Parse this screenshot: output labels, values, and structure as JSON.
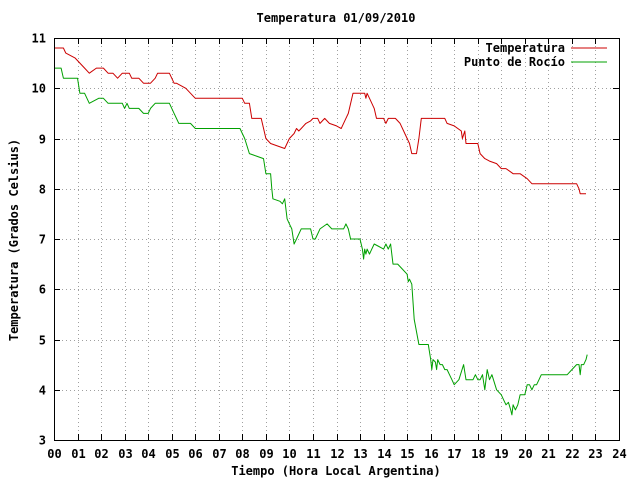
{
  "chart_data": {
    "type": "line",
    "title": "Temperatura 01/09/2010",
    "xlabel": "Tiempo (Hora Local Argentina)",
    "ylabel": "Temperatura (Grados Celsius)",
    "xlim": [
      0,
      24
    ],
    "ylim": [
      3,
      11
    ],
    "x_ticks": [
      "00",
      "01",
      "02",
      "03",
      "04",
      "05",
      "06",
      "07",
      "08",
      "09",
      "10",
      "11",
      "12",
      "13",
      "14",
      "15",
      "16",
      "17",
      "18",
      "19",
      "20",
      "21",
      "22",
      "23",
      "24"
    ],
    "y_ticks": [
      "3",
      "4",
      "5",
      "6",
      "7",
      "8",
      "9",
      "10",
      "11"
    ],
    "grid": true,
    "legend_position": "top-right",
    "series": [
      {
        "name": "Temperatura",
        "color": "#cc0000",
        "points": [
          [
            0.0,
            10.8
          ],
          [
            0.4,
            10.8
          ],
          [
            0.5,
            10.7
          ],
          [
            0.9,
            10.6
          ],
          [
            1.1,
            10.5
          ],
          [
            1.3,
            10.4
          ],
          [
            1.5,
            10.3
          ],
          [
            1.8,
            10.4
          ],
          [
            2.1,
            10.4
          ],
          [
            2.3,
            10.3
          ],
          [
            2.5,
            10.3
          ],
          [
            2.7,
            10.2
          ],
          [
            2.9,
            10.3
          ],
          [
            3.2,
            10.3
          ],
          [
            3.3,
            10.2
          ],
          [
            3.6,
            10.2
          ],
          [
            3.8,
            10.1
          ],
          [
            4.1,
            10.1
          ],
          [
            4.3,
            10.2
          ],
          [
            4.4,
            10.3
          ],
          [
            4.9,
            10.3
          ],
          [
            5.1,
            10.1
          ],
          [
            5.2,
            10.1
          ],
          [
            5.6,
            10.0
          ],
          [
            6.0,
            9.8
          ],
          [
            6.5,
            9.8
          ],
          [
            7.0,
            9.8
          ],
          [
            7.5,
            9.8
          ],
          [
            8.0,
            9.8
          ],
          [
            8.1,
            9.7
          ],
          [
            8.3,
            9.7
          ],
          [
            8.4,
            9.4
          ],
          [
            8.8,
            9.4
          ],
          [
            9.0,
            9.0
          ],
          [
            9.2,
            8.9
          ],
          [
            9.5,
            8.85
          ],
          [
            9.8,
            8.8
          ],
          [
            10.0,
            9.0
          ],
          [
            10.2,
            9.1
          ],
          [
            10.3,
            9.2
          ],
          [
            10.4,
            9.15
          ],
          [
            10.5,
            9.2
          ],
          [
            10.7,
            9.3
          ],
          [
            10.9,
            9.35
          ],
          [
            11.0,
            9.4
          ],
          [
            11.2,
            9.4
          ],
          [
            11.3,
            9.3
          ],
          [
            11.5,
            9.4
          ],
          [
            11.7,
            9.3
          ],
          [
            12.0,
            9.25
          ],
          [
            12.2,
            9.2
          ],
          [
            12.4,
            9.4
          ],
          [
            12.5,
            9.5
          ],
          [
            12.7,
            9.9
          ],
          [
            13.0,
            9.9
          ],
          [
            13.2,
            9.9
          ],
          [
            13.25,
            9.8
          ],
          [
            13.3,
            9.9
          ],
          [
            13.4,
            9.8
          ],
          [
            13.6,
            9.6
          ],
          [
            13.7,
            9.4
          ],
          [
            14.0,
            9.4
          ],
          [
            14.1,
            9.3
          ],
          [
            14.2,
            9.4
          ],
          [
            14.5,
            9.4
          ],
          [
            14.7,
            9.3
          ],
          [
            14.9,
            9.1
          ],
          [
            15.1,
            8.9
          ],
          [
            15.2,
            8.7
          ],
          [
            15.4,
            8.7
          ],
          [
            15.5,
            9.0
          ],
          [
            15.6,
            9.4
          ],
          [
            16.0,
            9.4
          ],
          [
            16.4,
            9.4
          ],
          [
            16.6,
            9.4
          ],
          [
            16.7,
            9.3
          ],
          [
            17.0,
            9.25
          ],
          [
            17.3,
            9.15
          ],
          [
            17.35,
            9.0
          ],
          [
            17.45,
            9.15
          ],
          [
            17.5,
            8.9
          ],
          [
            17.7,
            8.9
          ],
          [
            18.0,
            8.9
          ],
          [
            18.1,
            8.7
          ],
          [
            18.3,
            8.6
          ],
          [
            18.5,
            8.55
          ],
          [
            18.8,
            8.5
          ],
          [
            19.0,
            8.4
          ],
          [
            19.2,
            8.4
          ],
          [
            19.5,
            8.3
          ],
          [
            19.8,
            8.3
          ],
          [
            20.1,
            8.2
          ],
          [
            20.3,
            8.1
          ],
          [
            20.8,
            8.1
          ],
          [
            21.5,
            8.1
          ],
          [
            22.0,
            8.1
          ],
          [
            22.2,
            8.1
          ],
          [
            22.3,
            8.0
          ],
          [
            22.35,
            7.9
          ],
          [
            22.5,
            7.9
          ],
          [
            22.6,
            7.9
          ]
        ]
      },
      {
        "name": "Punto de Rocío",
        "color": "#00a000",
        "points": [
          [
            0.0,
            10.4
          ],
          [
            0.3,
            10.4
          ],
          [
            0.4,
            10.2
          ],
          [
            1.0,
            10.2
          ],
          [
            1.1,
            9.9
          ],
          [
            1.3,
            9.9
          ],
          [
            1.5,
            9.7
          ],
          [
            1.7,
            9.75
          ],
          [
            1.9,
            9.8
          ],
          [
            2.1,
            9.8
          ],
          [
            2.3,
            9.7
          ],
          [
            2.5,
            9.7
          ],
          [
            2.9,
            9.7
          ],
          [
            3.0,
            9.6
          ],
          [
            3.1,
            9.7
          ],
          [
            3.2,
            9.6
          ],
          [
            3.6,
            9.6
          ],
          [
            3.8,
            9.5
          ],
          [
            4.0,
            9.5
          ],
          [
            4.1,
            9.6
          ],
          [
            4.3,
            9.7
          ],
          [
            4.9,
            9.7
          ],
          [
            5.1,
            9.5
          ],
          [
            5.3,
            9.3
          ],
          [
            5.8,
            9.3
          ],
          [
            6.0,
            9.2
          ],
          [
            6.5,
            9.2
          ],
          [
            7.0,
            9.2
          ],
          [
            7.5,
            9.2
          ],
          [
            7.9,
            9.2
          ],
          [
            8.0,
            9.1
          ],
          [
            8.1,
            9.0
          ],
          [
            8.3,
            8.7
          ],
          [
            8.6,
            8.65
          ],
          [
            8.9,
            8.6
          ],
          [
            9.0,
            8.3
          ],
          [
            9.2,
            8.3
          ],
          [
            9.25,
            8.0
          ],
          [
            9.3,
            7.8
          ],
          [
            9.6,
            7.75
          ],
          [
            9.7,
            7.7
          ],
          [
            9.8,
            7.8
          ],
          [
            9.9,
            7.4
          ],
          [
            10.0,
            7.3
          ],
          [
            10.1,
            7.2
          ],
          [
            10.2,
            6.9
          ],
          [
            10.3,
            7.0
          ],
          [
            10.5,
            7.2
          ],
          [
            10.9,
            7.2
          ],
          [
            11.0,
            7.0
          ],
          [
            11.1,
            7.0
          ],
          [
            11.3,
            7.2
          ],
          [
            11.6,
            7.3
          ],
          [
            11.8,
            7.2
          ],
          [
            12.3,
            7.2
          ],
          [
            12.4,
            7.3
          ],
          [
            12.5,
            7.2
          ],
          [
            12.6,
            7.0
          ],
          [
            12.8,
            7.0
          ],
          [
            13.0,
            7.0
          ],
          [
            13.1,
            6.8
          ],
          [
            13.15,
            6.6
          ],
          [
            13.2,
            6.8
          ],
          [
            13.25,
            6.7
          ],
          [
            13.3,
            6.8
          ],
          [
            13.4,
            6.7
          ],
          [
            13.5,
            6.8
          ],
          [
            13.6,
            6.9
          ],
          [
            13.8,
            6.85
          ],
          [
            14.0,
            6.8
          ],
          [
            14.1,
            6.9
          ],
          [
            14.2,
            6.8
          ],
          [
            14.3,
            6.9
          ],
          [
            14.4,
            6.5
          ],
          [
            14.6,
            6.5
          ],
          [
            14.8,
            6.4
          ],
          [
            15.0,
            6.3
          ],
          [
            15.05,
            6.15
          ],
          [
            15.1,
            6.2
          ],
          [
            15.2,
            6.1
          ],
          [
            15.3,
            5.4
          ],
          [
            15.5,
            4.9
          ],
          [
            15.9,
            4.9
          ],
          [
            16.0,
            4.6
          ],
          [
            16.05,
            4.4
          ],
          [
            16.1,
            4.6
          ],
          [
            16.2,
            4.55
          ],
          [
            16.25,
            4.4
          ],
          [
            16.3,
            4.6
          ],
          [
            16.4,
            4.5
          ],
          [
            16.5,
            4.5
          ],
          [
            16.6,
            4.4
          ],
          [
            16.7,
            4.4
          ],
          [
            16.8,
            4.3
          ],
          [
            16.9,
            4.2
          ],
          [
            17.0,
            4.1
          ],
          [
            17.2,
            4.2
          ],
          [
            17.4,
            4.5
          ],
          [
            17.5,
            4.2
          ],
          [
            17.6,
            4.2
          ],
          [
            17.8,
            4.2
          ],
          [
            17.9,
            4.3
          ],
          [
            18.0,
            4.2
          ],
          [
            18.1,
            4.2
          ],
          [
            18.2,
            4.3
          ],
          [
            18.3,
            4.0
          ],
          [
            18.4,
            4.4
          ],
          [
            18.5,
            4.2
          ],
          [
            18.6,
            4.3
          ],
          [
            18.8,
            4.0
          ],
          [
            19.0,
            3.9
          ],
          [
            19.1,
            3.8
          ],
          [
            19.2,
            3.7
          ],
          [
            19.3,
            3.75
          ],
          [
            19.4,
            3.6
          ],
          [
            19.45,
            3.5
          ],
          [
            19.5,
            3.7
          ],
          [
            19.6,
            3.6
          ],
          [
            19.7,
            3.7
          ],
          [
            19.8,
            3.9
          ],
          [
            20.0,
            3.9
          ],
          [
            20.1,
            4.1
          ],
          [
            20.2,
            4.1
          ],
          [
            20.3,
            4.0
          ],
          [
            20.4,
            4.1
          ],
          [
            20.5,
            4.1
          ],
          [
            20.6,
            4.2
          ],
          [
            20.7,
            4.3
          ],
          [
            21.0,
            4.3
          ],
          [
            21.5,
            4.3
          ],
          [
            21.8,
            4.3
          ],
          [
            22.0,
            4.4
          ],
          [
            22.2,
            4.5
          ],
          [
            22.3,
            4.5
          ],
          [
            22.35,
            4.3
          ],
          [
            22.4,
            4.5
          ],
          [
            22.5,
            4.5
          ],
          [
            22.6,
            4.6
          ],
          [
            22.65,
            4.7
          ]
        ]
      }
    ]
  }
}
